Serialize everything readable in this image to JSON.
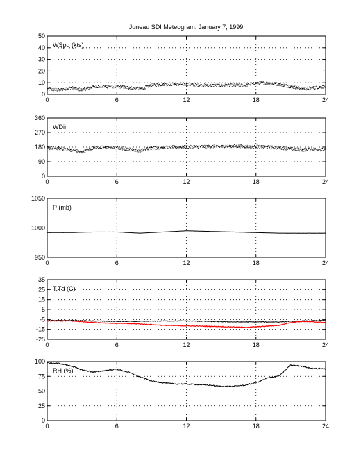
{
  "title": "Juneau SDI Meteogram:   January  7, 1999",
  "chart_data": [
    {
      "type": "scatter",
      "label": "WSpd (kts)",
      "x_ticks": [
        0,
        6,
        12,
        18,
        24
      ],
      "y_ticks": [
        0,
        10,
        20,
        30,
        40,
        50
      ],
      "xlim": [
        0,
        24
      ],
      "ylim": [
        0,
        50
      ],
      "grid": true,
      "series": [
        {
          "color": "#000000",
          "x": [
            0,
            1,
            2,
            3,
            4,
            5,
            6,
            7,
            8,
            9,
            10,
            11,
            12,
            13,
            14,
            15,
            16,
            17,
            18,
            19,
            20,
            21,
            22,
            23,
            24
          ],
          "y": [
            5,
            4,
            6,
            4,
            7,
            7,
            7,
            6,
            5,
            8,
            9,
            9,
            9,
            8,
            8,
            8,
            8,
            8,
            10,
            10,
            9,
            7,
            5,
            6,
            7
          ]
        }
      ]
    },
    {
      "type": "scatter",
      "label": "WDir",
      "x_ticks": [
        0,
        6,
        12,
        18,
        24
      ],
      "y_ticks": [
        0,
        90,
        180,
        270,
        360
      ],
      "xlim": [
        0,
        24
      ],
      "ylim": [
        0,
        360
      ],
      "grid": true,
      "series": [
        {
          "color": "#000000",
          "x": [
            0,
            1,
            2,
            3,
            4,
            5,
            6,
            7,
            8,
            9,
            10,
            11,
            12,
            13,
            14,
            15,
            16,
            17,
            18,
            19,
            20,
            21,
            22,
            23,
            24
          ],
          "y": [
            175,
            175,
            165,
            150,
            180,
            180,
            178,
            170,
            160,
            178,
            180,
            182,
            183,
            185,
            186,
            185,
            188,
            186,
            185,
            182,
            178,
            172,
            165,
            170,
            165
          ]
        }
      ]
    },
    {
      "type": "line",
      "label": "P (mb)",
      "x_ticks": [
        0,
        6,
        12,
        18,
        24
      ],
      "y_ticks": [
        950,
        1000,
        1050
      ],
      "xlim": [
        0,
        24
      ],
      "ylim": [
        950,
        1050
      ],
      "grid": true,
      "series": [
        {
          "color": "#000000",
          "x": [
            0,
            2,
            4,
            6,
            8,
            10,
            12,
            14,
            16,
            18,
            20,
            22,
            24
          ],
          "y": [
            992,
            992,
            993,
            993,
            991,
            993,
            995,
            994,
            993,
            992,
            991,
            991,
            991
          ]
        }
      ]
    },
    {
      "type": "line",
      "label": "T,Td (C)",
      "x_ticks": [
        0,
        6,
        12,
        18,
        24
      ],
      "y_ticks": [
        -25,
        -15,
        -5,
        5,
        15,
        25,
        35
      ],
      "xlim": [
        0,
        24
      ],
      "ylim": [
        -25,
        35
      ],
      "grid": true,
      "series": [
        {
          "color": "#000000",
          "x": [
            0,
            2,
            4,
            6,
            8,
            10,
            12,
            14,
            16,
            18,
            20,
            21,
            22,
            24
          ],
          "y": [
            -6,
            -6,
            -6.5,
            -7,
            -7,
            -6.5,
            -6.5,
            -7,
            -7.5,
            -7.5,
            -7.5,
            -7,
            -6.5,
            -6
          ]
        },
        {
          "color": "#ff0000",
          "x": [
            0,
            2,
            4,
            6,
            8,
            10,
            12,
            14,
            16,
            17,
            18,
            20,
            21,
            22,
            24
          ],
          "y": [
            -6.5,
            -6.5,
            -8,
            -9,
            -9.5,
            -11,
            -11.5,
            -12,
            -12.5,
            -13,
            -12.5,
            -11,
            -8,
            -7,
            -8
          ]
        }
      ]
    },
    {
      "type": "line",
      "label": "RH (%)",
      "x_ticks": [
        0,
        6,
        12,
        18,
        24
      ],
      "y_ticks": [
        0,
        25,
        50,
        75,
        100
      ],
      "xlim": [
        0,
        24
      ],
      "ylim": [
        0,
        100
      ],
      "grid": true,
      "series": [
        {
          "color": "#000000",
          "x": [
            0,
            1,
            2,
            3,
            4,
            5,
            6,
            7,
            8,
            9,
            10,
            11,
            12,
            13,
            14,
            15,
            16,
            17,
            18,
            19,
            20,
            21,
            22,
            23,
            24
          ],
          "y": [
            98,
            97,
            93,
            86,
            82,
            85,
            87,
            82,
            74,
            67,
            64,
            62,
            62,
            61,
            60,
            58,
            58,
            60,
            64,
            72,
            76,
            94,
            92,
            88,
            88
          ]
        }
      ]
    }
  ]
}
